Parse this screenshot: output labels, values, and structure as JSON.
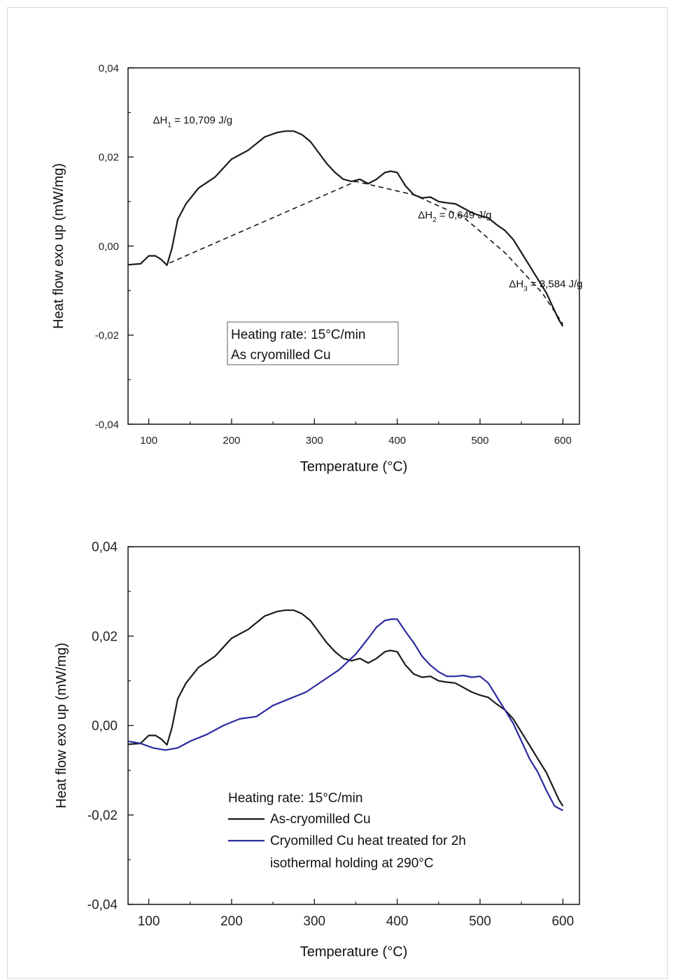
{
  "chart_data": [
    {
      "type": "line",
      "xlabel": "Temperature (°C)",
      "ylabel": "Heat flow exo up (mW/mg)",
      "xlim": [
        75,
        620
      ],
      "ylim": [
        -0.04,
        0.04
      ],
      "xticks": [
        100,
        200,
        300,
        400,
        500,
        600
      ],
      "yticks": [
        -0.04,
        -0.02,
        0.0,
        0.02,
        0.04
      ],
      "xtick_labels": [
        "100",
        "200",
        "300",
        "400",
        "500",
        "600"
      ],
      "ytick_labels": [
        "-0,04",
        "-0,02",
        "0,00",
        "0,02",
        "0,04"
      ],
      "grid": false,
      "series": [
        {
          "color": "#1a1a1a",
          "style": "solid",
          "x": [
            75,
            90,
            100,
            108,
            115,
            122,
            128,
            135,
            145,
            160,
            180,
            200,
            220,
            240,
            255,
            265,
            275,
            285,
            295,
            305,
            315,
            325,
            335,
            345,
            355,
            365,
            375,
            385,
            392,
            400,
            410,
            420,
            430,
            440,
            450,
            460,
            470,
            480,
            490,
            500,
            510,
            520,
            530,
            540,
            550,
            560,
            570,
            580,
            590,
            595,
            600
          ],
          "values": [
            -0.0042,
            -0.004,
            -0.0022,
            -0.0022,
            -0.003,
            -0.0043,
            -0.0005,
            0.006,
            0.0095,
            0.013,
            0.0155,
            0.0195,
            0.0215,
            0.0245,
            0.0255,
            0.0258,
            0.0258,
            0.025,
            0.0235,
            0.021,
            0.0185,
            0.0165,
            0.015,
            0.0145,
            0.015,
            0.014,
            0.015,
            0.0165,
            0.0168,
            0.0165,
            0.0135,
            0.0115,
            0.0108,
            0.011,
            0.01,
            0.0097,
            0.0095,
            0.0085,
            0.0075,
            0.0068,
            0.0063,
            0.0048,
            0.0035,
            0.0015,
            -0.0015,
            -0.0045,
            -0.0075,
            -0.0105,
            -0.0145,
            -0.0165,
            -0.018
          ]
        },
        {
          "color": "#1a1a1a",
          "style": "dashed",
          "x": [
            125,
            350,
            420,
            480,
            530,
            575,
            600
          ],
          "values": [
            -0.0038,
            0.0145,
            0.0115,
            0.0065,
            -0.0015,
            -0.0105,
            -0.0175
          ]
        }
      ],
      "annotations": [
        {
          "text_main": "ΔH",
          "text_sub": "1",
          "text_rest": " = 10,709 J/g",
          "x": 105,
          "y": 0.0275
        },
        {
          "text_main": "ΔH",
          "text_sub": "2",
          "text_rest": " = 0,649 J/g",
          "x": 425,
          "y": 0.0062
        },
        {
          "text_main": "ΔH",
          "text_sub": "3",
          "text_rest": " = 3,584 J/g",
          "x": 535,
          "y": -0.0093
        }
      ],
      "legend_box": {
        "lines": [
          "Heating rate: 15°C/min",
          "As cryomilled Cu"
        ],
        "position": "lower-center"
      }
    },
    {
      "type": "line",
      "xlabel": "Temperature (°C)",
      "ylabel": "Heat flow exo up (mW/mg)",
      "xlim": [
        75,
        620
      ],
      "ylim": [
        -0.04,
        0.04
      ],
      "xticks": [
        100,
        200,
        300,
        400,
        500,
        600
      ],
      "yticks": [
        -0.04,
        -0.02,
        0.0,
        0.02,
        0.04
      ],
      "xtick_labels": [
        "100",
        "200",
        "300",
        "400",
        "500",
        "600"
      ],
      "ytick_labels": [
        "-0,04",
        "-0,02",
        "0,00",
        "0,02",
        "0,04"
      ],
      "grid": false,
      "legend_title": "Heating rate: 15°C/min",
      "series": [
        {
          "name": "As-cryomilled Cu",
          "color": "#1a1a1a",
          "x": [
            75,
            90,
            100,
            108,
            115,
            122,
            128,
            135,
            145,
            160,
            180,
            200,
            220,
            240,
            255,
            265,
            275,
            285,
            295,
            305,
            315,
            325,
            335,
            345,
            355,
            365,
            375,
            385,
            392,
            400,
            410,
            420,
            430,
            440,
            450,
            460,
            470,
            480,
            490,
            500,
            510,
            520,
            530,
            540,
            550,
            560,
            570,
            580,
            590,
            595,
            600
          ],
          "values": [
            -0.0042,
            -0.004,
            -0.0022,
            -0.0022,
            -0.003,
            -0.0043,
            -0.0005,
            0.006,
            0.0095,
            0.013,
            0.0155,
            0.0195,
            0.0215,
            0.0245,
            0.0255,
            0.0258,
            0.0258,
            0.025,
            0.0235,
            0.021,
            0.0185,
            0.0165,
            0.015,
            0.0145,
            0.015,
            0.014,
            0.015,
            0.0165,
            0.0168,
            0.0165,
            0.0135,
            0.0115,
            0.0108,
            0.011,
            0.01,
            0.0097,
            0.0095,
            0.0085,
            0.0075,
            0.0068,
            0.0063,
            0.0048,
            0.0035,
            0.0015,
            -0.0015,
            -0.0045,
            -0.0075,
            -0.0105,
            -0.0145,
            -0.0165,
            -0.018
          ]
        },
        {
          "name": "Cryomilled Cu heat treated for 2h",
          "name_line2": "isothermal holding at 290°C",
          "color": "#2b2aa0",
          "x": [
            75,
            90,
            105,
            120,
            135,
            150,
            170,
            190,
            210,
            230,
            250,
            270,
            290,
            310,
            330,
            350,
            365,
            375,
            385,
            393,
            400,
            410,
            420,
            430,
            440,
            450,
            460,
            470,
            480,
            490,
            500,
            510,
            520,
            530,
            540,
            550,
            560,
            570,
            580,
            590,
            600
          ],
          "values": [
            -0.0035,
            -0.004,
            -0.005,
            -0.0055,
            -0.005,
            -0.0035,
            -0.002,
            0.0,
            0.0015,
            0.002,
            0.0045,
            0.006,
            0.0075,
            0.01,
            0.0125,
            0.016,
            0.0195,
            0.022,
            0.0235,
            0.0238,
            0.0238,
            0.021,
            0.0185,
            0.0155,
            0.0135,
            0.012,
            0.011,
            0.011,
            0.0112,
            0.0108,
            0.011,
            0.0095,
            0.0065,
            0.0035,
            0.0005,
            -0.0035,
            -0.0075,
            -0.0105,
            -0.0145,
            -0.018,
            -0.019
          ]
        }
      ]
    }
  ]
}
